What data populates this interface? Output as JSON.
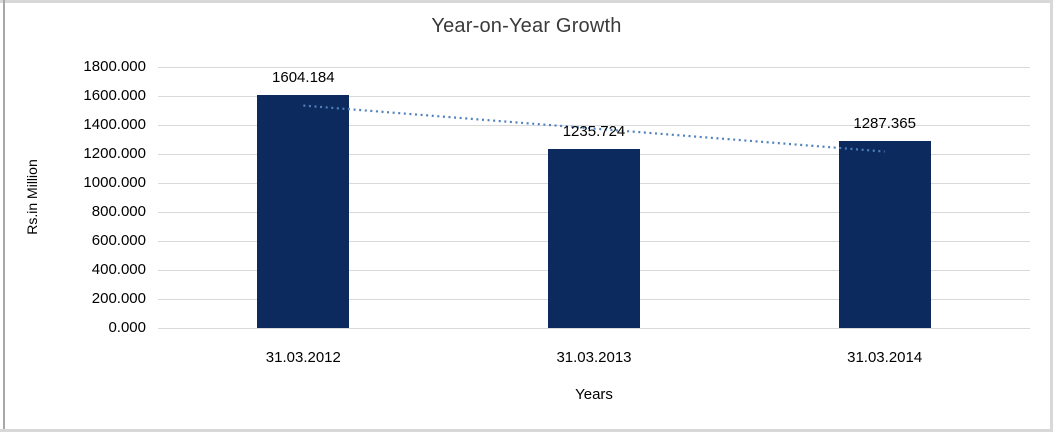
{
  "chart_data": {
    "type": "bar",
    "title": "Year-on-Year Growth",
    "xlabel": "Years",
    "ylabel": "Rs.in Million",
    "categories": [
      "31.03.2012",
      "31.03.2013",
      "31.03.2014"
    ],
    "values": [
      1604.184,
      1235.724,
      1287.365
    ],
    "bar_labels": [
      "1604.184",
      "1235.724",
      "1287.365"
    ],
    "ylim": [
      0,
      1800
    ],
    "y_tick_step": 200,
    "y_tick_labels": [
      "0.000",
      "200.000",
      "400.000",
      "600.000",
      "800.000",
      "1000.000",
      "1200.000",
      "1400.000",
      "1600.000",
      "1800.000"
    ],
    "grid": true,
    "legend": "none",
    "colors": {
      "bar": "#0d2a5e",
      "gridline": "#d9d9d9",
      "trendline": "#4f81bd",
      "text": "#000000",
      "title_text": "#3a3a3a"
    },
    "trendline": {
      "type": "linear",
      "style": "dotted",
      "color": "#4f81bd",
      "endpoint_values": [
        1534,
        1217
      ]
    }
  }
}
